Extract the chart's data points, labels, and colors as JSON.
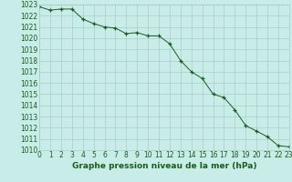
{
  "x": [
    0,
    1,
    2,
    3,
    4,
    5,
    6,
    7,
    8,
    9,
    10,
    11,
    12,
    13,
    14,
    15,
    16,
    17,
    18,
    19,
    20,
    21,
    22,
    23
  ],
  "y": [
    1022.8,
    1022.5,
    1022.6,
    1022.6,
    1021.7,
    1021.3,
    1021.0,
    1020.9,
    1020.4,
    1020.5,
    1020.2,
    1020.2,
    1019.5,
    1018.0,
    1017.0,
    1016.4,
    1015.0,
    1014.7,
    1013.6,
    1012.2,
    1011.7,
    1011.2,
    1010.4,
    1010.3
  ],
  "line_color": "#1a5c1a",
  "marker": "+",
  "bg_color": "#c8ede8",
  "grid_color": "#aaccc8",
  "xlabel": "Graphe pression niveau de la mer (hPa)",
  "ylim_min": 1010,
  "ylim_max": 1023,
  "xlim_min": 0,
  "xlim_max": 23,
  "yticks": [
    1010,
    1011,
    1012,
    1013,
    1014,
    1015,
    1016,
    1017,
    1018,
    1019,
    1020,
    1021,
    1022,
    1023
  ],
  "xticks": [
    0,
    1,
    2,
    3,
    4,
    5,
    6,
    7,
    8,
    9,
    10,
    11,
    12,
    13,
    14,
    15,
    16,
    17,
    18,
    19,
    20,
    21,
    22,
    23
  ],
  "tick_fontsize": 5.5,
  "xlabel_fontsize": 6.5,
  "label_color": "#1a5c1a"
}
